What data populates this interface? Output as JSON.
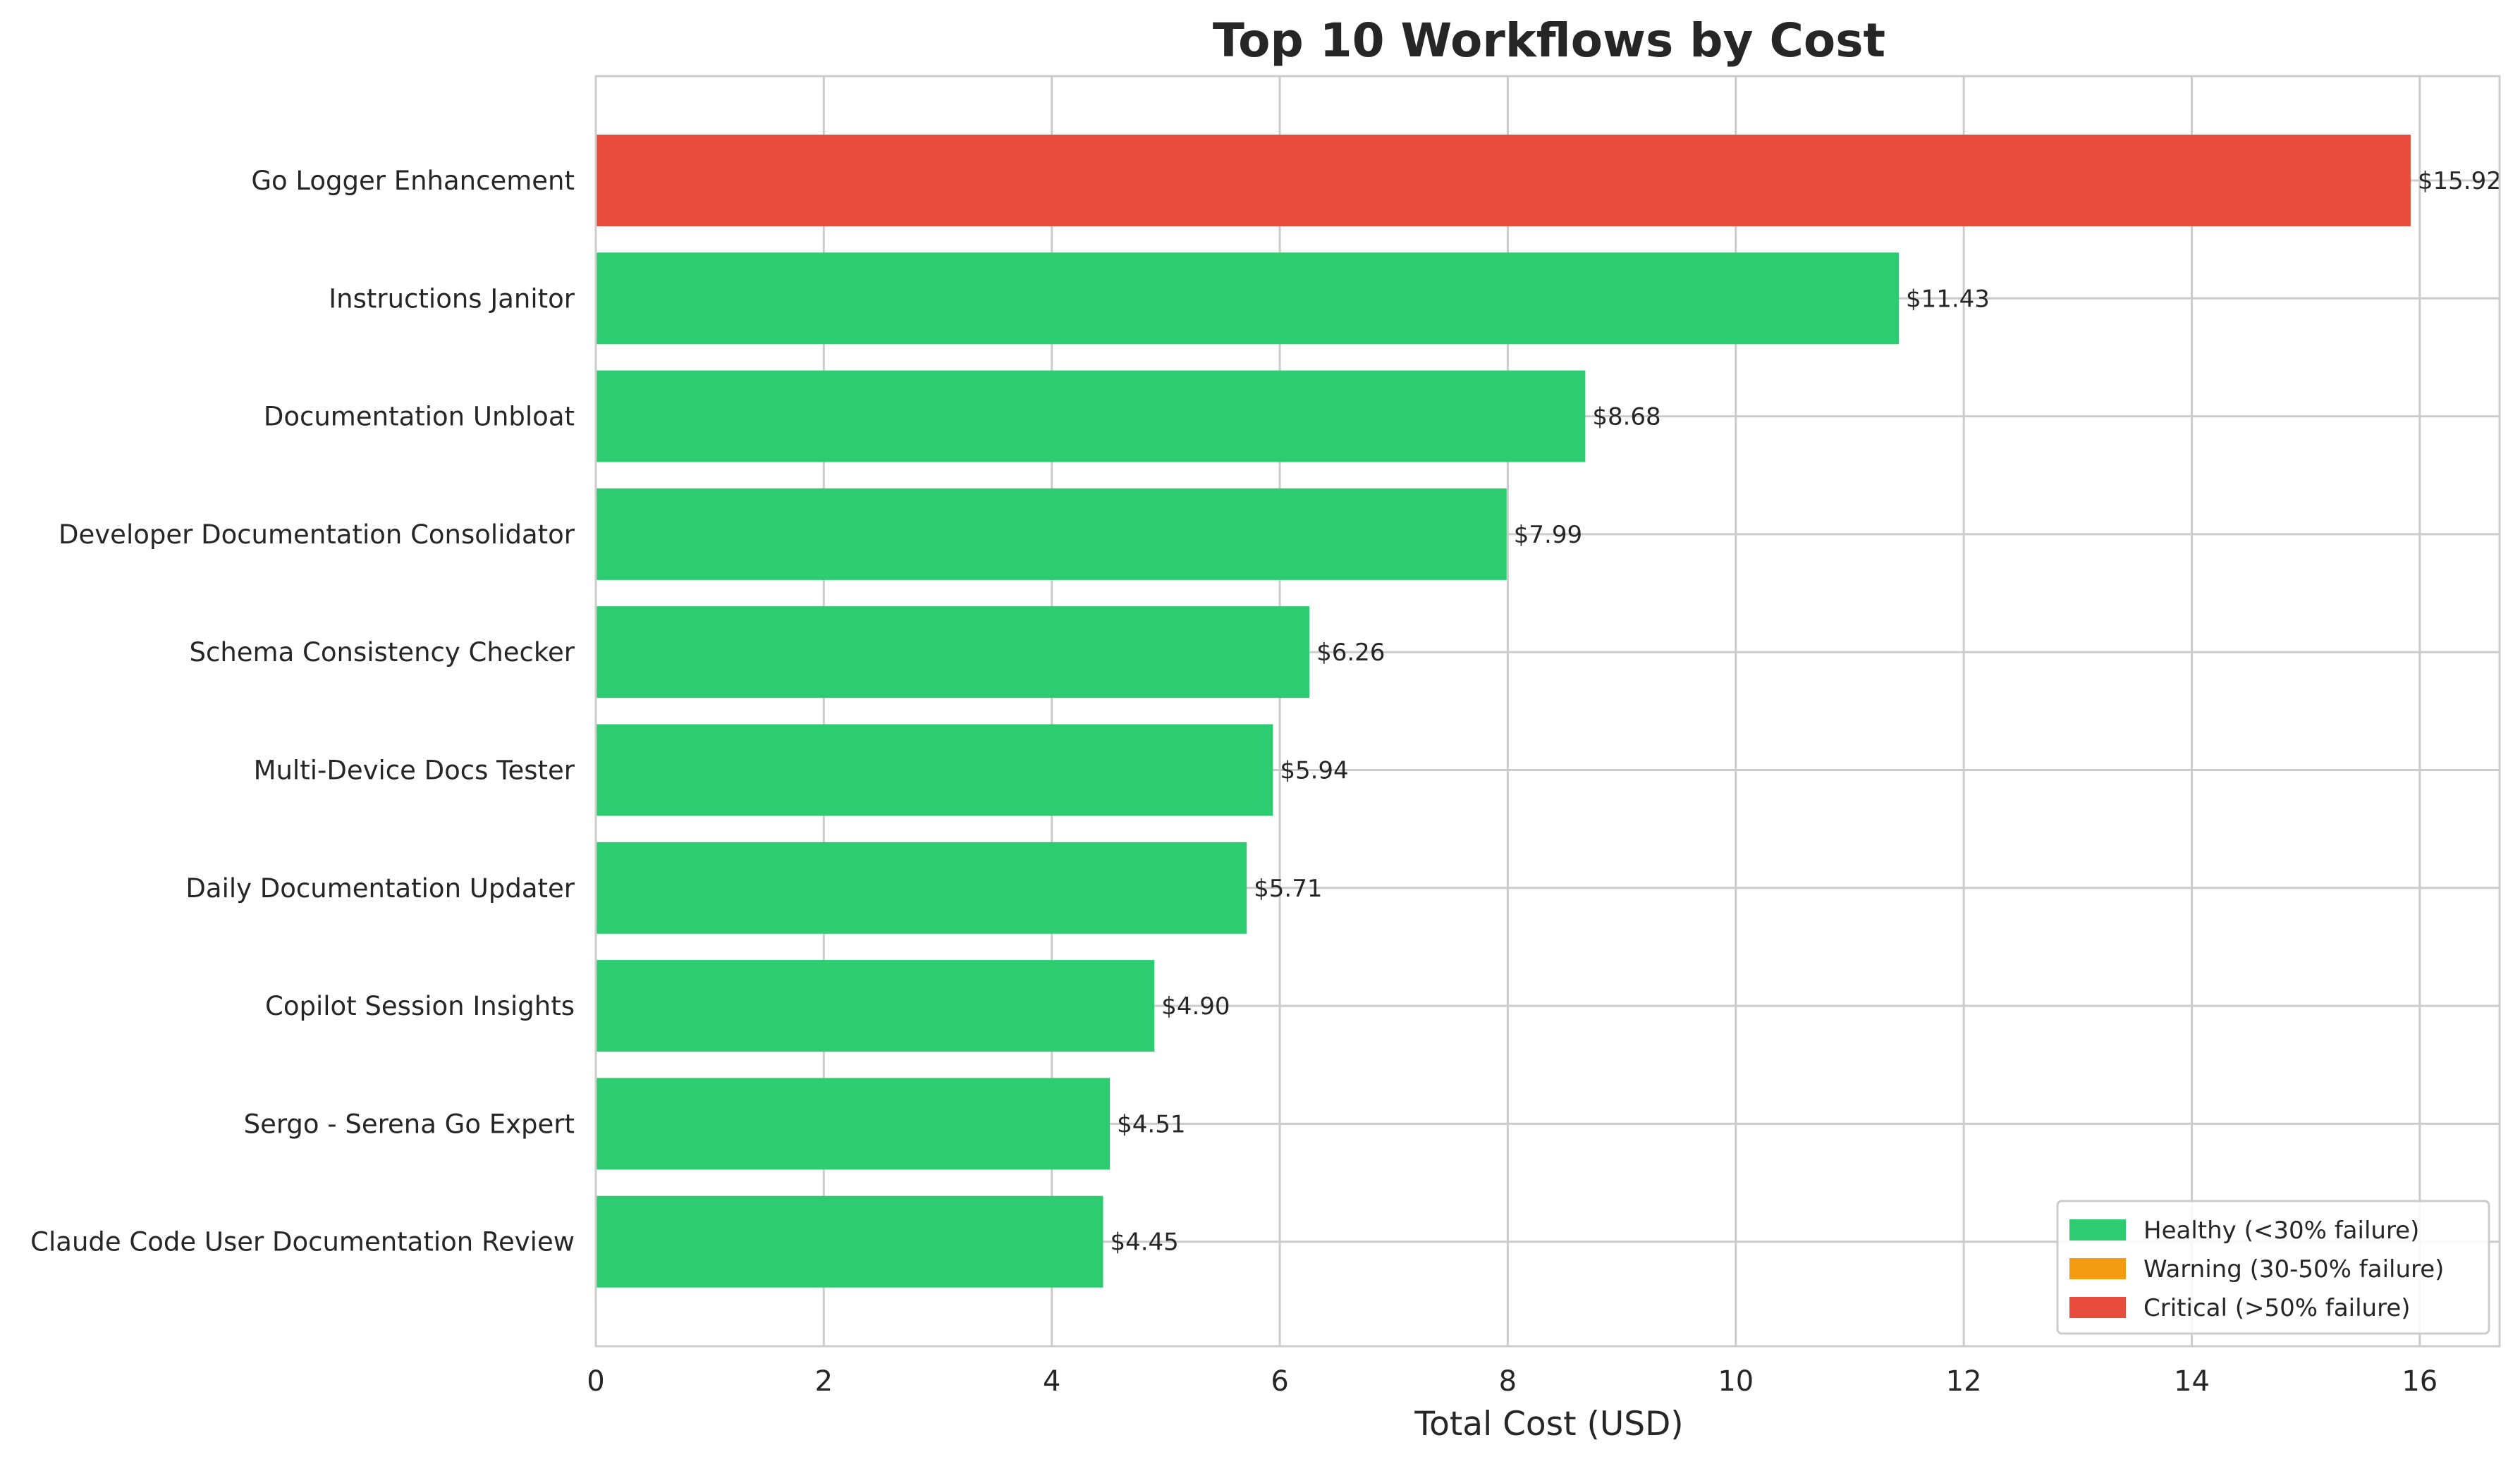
{
  "chart_data": {
    "type": "bar",
    "orientation": "horizontal",
    "title": "Top 10 Workflows by Cost",
    "xlabel": "Total Cost (USD)",
    "ylabel": "",
    "xlim": [
      0,
      16.7
    ],
    "xticks": [
      0,
      2,
      4,
      6,
      8,
      10,
      12,
      14,
      16
    ],
    "grid": true,
    "legend_position": "bottom-right",
    "colors": {
      "healthy": "#2ecc71",
      "warning": "#f39c12",
      "critical": "#e74c3c"
    },
    "legend": [
      {
        "label": "Healthy (<30% failure)",
        "status": "healthy"
      },
      {
        "label": "Warning (30-50% failure)",
        "status": "warning"
      },
      {
        "label": "Critical (>50% failure)",
        "status": "critical"
      }
    ],
    "categories": [
      "Go Logger Enhancement",
      "Instructions Janitor",
      "Documentation Unbloat",
      "Developer Documentation Consolidator",
      "Schema Consistency Checker",
      "Multi-Device Docs Tester",
      "Daily Documentation Updater",
      "Copilot Session Insights",
      "Sergo - Serena Go Expert",
      "Claude Code User Documentation Review"
    ],
    "values": [
      15.92,
      11.43,
      8.68,
      7.99,
      6.26,
      5.94,
      5.71,
      4.9,
      4.51,
      4.45
    ],
    "value_labels": [
      "$15.92",
      "$11.43",
      "$8.68",
      "$7.99",
      "$6.26",
      "$5.94",
      "$5.71",
      "$4.90",
      "$4.51",
      "$4.45"
    ],
    "status": [
      "critical",
      "healthy",
      "healthy",
      "healthy",
      "healthy",
      "healthy",
      "healthy",
      "healthy",
      "healthy",
      "healthy"
    ]
  }
}
